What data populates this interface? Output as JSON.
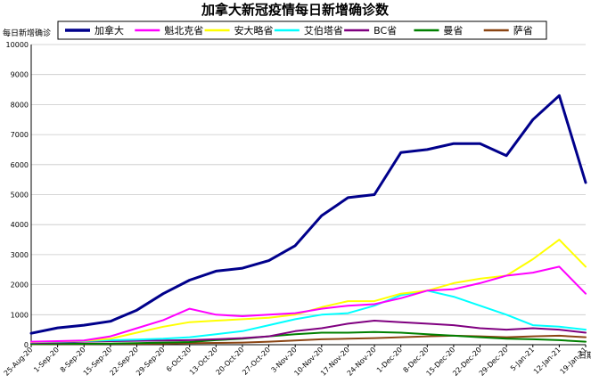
{
  "chart_data": {
    "type": "line",
    "title": "加拿大新冠疫情每日新增确诊数",
    "ylabel": "每日新增确诊",
    "xlabel": "日期",
    "ylim": [
      0,
      10000
    ],
    "yticks": [
      0,
      1000,
      2000,
      3000,
      4000,
      5000,
      6000,
      7000,
      8000,
      9000,
      10000
    ],
    "x": [
      "25-Aug-20",
      "1-Sep-20",
      "8-Sep-20",
      "15-Sep-20",
      "22-Sep-20",
      "29-Sep-20",
      "6-Oct-20",
      "13-Oct-20",
      "20-Oct-20",
      "27-Oct-20",
      "3-Nov-20",
      "10-Nov-20",
      "17-Nov-20",
      "24-Nov-20",
      "1-Dec-20",
      "8-Dec-20",
      "15-Dec-20",
      "22-Dec-20",
      "29-Dec-20",
      "5-Jan-21",
      "12-Jan-21",
      "19-Jan-21"
    ],
    "grid": true,
    "legend_position": "top",
    "series": [
      {
        "name": "加拿大",
        "color": "#00008B",
        "width": 3,
        "values": [
          380,
          560,
          650,
          780,
          1150,
          1700,
          2150,
          2450,
          2550,
          2800,
          3300,
          4300,
          4900,
          5000,
          6400,
          6500,
          6700,
          6700,
          6300,
          7500,
          8300,
          5400
        ]
      },
      {
        "name": "魁北克省",
        "color": "#FF00FF",
        "width": 2,
        "values": [
          100,
          120,
          140,
          280,
          550,
          820,
          1200,
          1000,
          950,
          1000,
          1050,
          1200,
          1300,
          1350,
          1550,
          1800,
          1850,
          2050,
          2300,
          2400,
          2600,
          1700
        ]
      },
      {
        "name": "安大略省",
        "color": "#FFFF00",
        "width": 2,
        "values": [
          90,
          110,
          130,
          200,
          400,
          600,
          750,
          800,
          850,
          900,
          1000,
          1250,
          1450,
          1450,
          1700,
          1800,
          2050,
          2200,
          2300,
          2850,
          3500,
          2600
        ]
      },
      {
        "name": "艾伯塔省",
        "color": "#00FFFF",
        "width": 2,
        "values": [
          80,
          100,
          120,
          150,
          170,
          200,
          250,
          350,
          450,
          650,
          850,
          1000,
          1050,
          1300,
          1650,
          1800,
          1600,
          1300,
          1000,
          650,
          600,
          500
        ]
      },
      {
        "name": "BC省",
        "color": "#800080",
        "width": 2,
        "values": [
          60,
          70,
          100,
          120,
          130,
          140,
          150,
          180,
          220,
          280,
          450,
          550,
          700,
          800,
          750,
          700,
          650,
          550,
          500,
          550,
          500,
          400
        ]
      },
      {
        "name": "曼省",
        "color": "#008000",
        "width": 2,
        "values": [
          20,
          30,
          30,
          40,
          50,
          70,
          90,
          150,
          200,
          280,
          350,
          400,
          400,
          420,
          400,
          350,
          300,
          250,
          200,
          180,
          150,
          100
        ]
      },
      {
        "name": "萨省",
        "color": "#8B4513",
        "width": 2,
        "values": [
          15,
          20,
          20,
          30,
          30,
          40,
          50,
          60,
          70,
          100,
          140,
          180,
          200,
          220,
          250,
          280,
          300,
          280,
          250,
          280,
          300,
          250
        ]
      }
    ]
  }
}
